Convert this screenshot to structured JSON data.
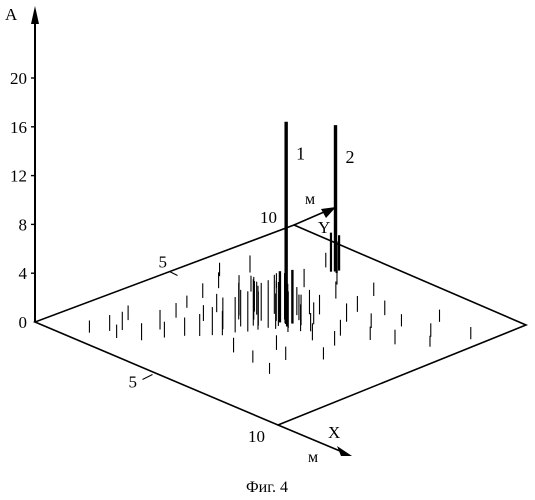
{
  "chart_data": {
    "type": "3d-stem",
    "axis_labels": {
      "z": "A",
      "x": "X",
      "y": "Y"
    },
    "axis_units": {
      "x": "м",
      "y": "м"
    },
    "z_ticks": [
      0,
      4,
      8,
      12,
      16,
      20
    ],
    "x_tick_labels": [
      {
        "value": 5,
        "label": "5"
      },
      {
        "value": 10,
        "label": "10"
      }
    ],
    "y_tick_labels": [
      {
        "value": 5,
        "label": "5"
      },
      {
        "value": 10,
        "label": "10"
      }
    ],
    "xlim": [
      0,
      10
    ],
    "ylim": [
      0,
      10
    ],
    "zlim": [
      0,
      24
    ],
    "peaks": [
      {
        "label": "1",
        "x": 4.9,
        "y": 5.1,
        "value": 16.5
      },
      {
        "label": "2",
        "x": 3.2,
        "y": 8.6,
        "value": 12.0
      }
    ],
    "noise_spikes": [
      [
        1.6,
        0.6,
        1.0
      ],
      [
        1.9,
        1.1,
        1.3
      ],
      [
        2.1,
        1.4,
        1.5
      ],
      [
        1.7,
        2.0,
        1.2
      ],
      [
        2.4,
        0.9,
        1.1
      ],
      [
        3.0,
        1.3,
        1.4
      ],
      [
        2.8,
        2.2,
        1.6
      ],
      [
        3.3,
        1.9,
        1.3
      ],
      [
        3.6,
        2.4,
        1.5
      ],
      [
        3.9,
        2.7,
        1.8
      ],
      [
        4.1,
        3.0,
        2.3
      ],
      [
        4.3,
        3.2,
        2.0
      ],
      [
        4.0,
        3.5,
        2.6
      ],
      [
        4.4,
        3.6,
        2.9
      ],
      [
        4.6,
        3.9,
        3.3
      ],
      [
        4.2,
        4.0,
        3.0
      ],
      [
        4.7,
        4.2,
        3.6
      ],
      [
        4.5,
        4.4,
        2.8
      ],
      [
        4.8,
        4.5,
        3.9
      ],
      [
        4.3,
        4.7,
        3.1
      ],
      [
        4.9,
        4.8,
        3.6
      ],
      [
        4.6,
        5.0,
        3.3
      ],
      [
        5.0,
        4.6,
        2.9
      ],
      [
        4.4,
        4.3,
        3.8
      ],
      [
        4.1,
        4.6,
        3.5
      ],
      [
        3.8,
        4.3,
        3.0
      ],
      [
        3.6,
        4.5,
        3.3
      ],
      [
        3.9,
        4.9,
        2.7
      ],
      [
        4.2,
        5.3,
        3.2
      ],
      [
        3.7,
        5.0,
        2.5
      ],
      [
        5.2,
        4.9,
        3.0
      ],
      [
        5.4,
        4.7,
        2.4
      ],
      [
        5.6,
        5.0,
        2.2
      ],
      [
        5.3,
        5.3,
        2.5
      ],
      [
        5.0,
        5.5,
        2.1
      ],
      [
        4.7,
        5.7,
        2.3
      ],
      [
        4.9,
        6.0,
        2.0
      ],
      [
        5.5,
        5.6,
        1.8
      ],
      [
        5.8,
        5.2,
        1.5
      ],
      [
        5.1,
        6.2,
        1.6
      ],
      [
        3.2,
        3.5,
        1.3
      ],
      [
        3.0,
        4.2,
        1.5
      ],
      [
        2.5,
        3.1,
        1.2
      ],
      [
        2.2,
        3.8,
        1.0
      ],
      [
        2.0,
        4.6,
        1.2
      ],
      [
        1.8,
        5.4,
        1.3
      ],
      [
        1.2,
        6.0,
        1.1
      ],
      [
        1.6,
        6.8,
        1.4
      ],
      [
        2.6,
        5.9,
        1.3
      ],
      [
        2.9,
        6.6,
        1.2
      ],
      [
        3.4,
        7.2,
        1.5
      ],
      [
        2.3,
        7.5,
        1.3
      ],
      [
        3.9,
        8.0,
        1.2
      ],
      [
        6.3,
        4.8,
        1.4
      ],
      [
        6.6,
        5.6,
        1.3
      ],
      [
        7.0,
        5.0,
        1.2
      ],
      [
        6.0,
        6.4,
        1.5
      ],
      [
        6.8,
        6.6,
        1.2
      ],
      [
        7.4,
        6.0,
        1.1
      ],
      [
        5.7,
        7.1,
        1.3
      ],
      [
        6.4,
        7.5,
        1.2
      ],
      [
        7.3,
        7.3,
        1.0
      ],
      [
        8.1,
        6.3,
        1.2
      ],
      [
        8.4,
        7.4,
        1.1
      ],
      [
        7.8,
        8.3,
        1.0
      ],
      [
        8.9,
        6.9,
        0.9
      ],
      [
        9.3,
        8.1,
        1.0
      ],
      [
        6.1,
        3.6,
        1.2
      ],
      [
        6.8,
        3.3,
        1.1
      ],
      [
        7.5,
        4.1,
        1.0
      ],
      [
        5.4,
        2.6,
        1.2
      ],
      [
        6.3,
        2.5,
        1.0
      ],
      [
        7.2,
        2.3,
        0.9
      ],
      [
        2.8,
        8.6,
        1.2
      ],
      [
        4.6,
        7.3,
        1.4
      ],
      [
        5.2,
        8.2,
        1.1
      ]
    ],
    "peak1_cluster": [
      [
        4.75,
        5.0,
        4.2
      ],
      [
        4.85,
        5.15,
        5.5
      ],
      [
        4.95,
        5.05,
        5.0
      ],
      [
        5.05,
        5.2,
        4.4
      ],
      [
        4.7,
        5.25,
        3.8
      ],
      [
        5.1,
        4.95,
        3.5
      ]
    ],
    "peak2_cluster": [
      [
        3.12,
        8.5,
        3.2
      ],
      [
        3.22,
        8.72,
        2.9
      ],
      [
        3.3,
        8.55,
        2.6
      ]
    ]
  },
  "caption": "Фиг. 4"
}
